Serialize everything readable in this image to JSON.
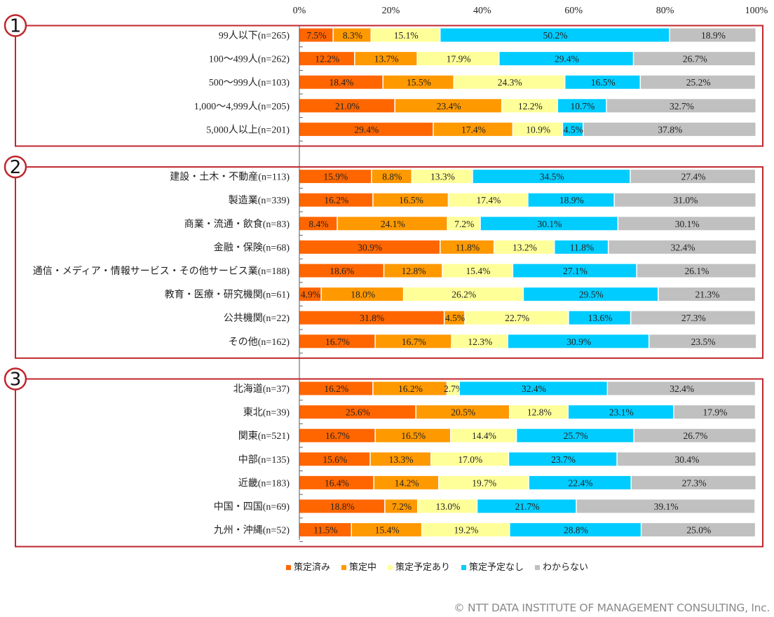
{
  "chart_data": {
    "type": "bar",
    "orientation": "horizontal",
    "stacked": true,
    "percent": true,
    "xlim": [
      0,
      100
    ],
    "x_ticks": [
      "0%",
      "20%",
      "40%",
      "60%",
      "80%",
      "100%"
    ],
    "legend_position": "bottom",
    "series": [
      {
        "name": "策定済み",
        "color": "#FF6600"
      },
      {
        "name": "策定中",
        "color": "#FF9900"
      },
      {
        "name": "策定予定あり",
        "color": "#FFFF99"
      },
      {
        "name": "策定予定なし",
        "color": "#00CCFF"
      },
      {
        "name": "わからない",
        "color": "#C0C0C0"
      }
    ],
    "groups": [
      {
        "number": "1",
        "rows": [
          {
            "label": "99人以下(n=265)",
            "values": [
              7.5,
              8.3,
              15.1,
              50.2,
              18.9
            ]
          },
          {
            "label": "100～499人(n=262)",
            "values": [
              12.2,
              13.7,
              17.9,
              29.4,
              26.7
            ]
          },
          {
            "label": "500～999人(n=103)",
            "values": [
              18.4,
              15.5,
              24.3,
              16.5,
              25.2
            ]
          },
          {
            "label": "1,000～4,999人(n=205)",
            "values": [
              21.0,
              23.4,
              12.2,
              10.7,
              32.7
            ]
          },
          {
            "label": "5,000人以上(n=201)",
            "values": [
              29.4,
              17.4,
              10.9,
              4.5,
              37.8
            ]
          }
        ]
      },
      {
        "number": "2",
        "rows": [
          {
            "label": "建設・土木・不動産(n=113)",
            "values": [
              15.9,
              8.8,
              13.3,
              34.5,
              27.4
            ]
          },
          {
            "label": "製造業(n=339)",
            "values": [
              16.2,
              16.5,
              17.4,
              18.9,
              31.0
            ]
          },
          {
            "label": "商業・流通・飲食(n=83)",
            "values": [
              8.4,
              24.1,
              7.2,
              30.1,
              30.1
            ]
          },
          {
            "label": "金融・保険(n=68)",
            "values": [
              30.9,
              11.8,
              13.2,
              11.8,
              32.4
            ]
          },
          {
            "label": "通信・メディア・情報サービス・その他サービス業(n=188)",
            "values": [
              18.6,
              12.8,
              15.4,
              27.1,
              26.1
            ]
          },
          {
            "label": "教育・医療・研究機関(n=61)",
            "values": [
              4.9,
              18.0,
              26.2,
              29.5,
              21.3
            ]
          },
          {
            "label": "公共機関(n=22)",
            "values": [
              31.8,
              4.5,
              22.7,
              13.6,
              27.3
            ]
          },
          {
            "label": "その他(n=162)",
            "values": [
              16.7,
              16.7,
              12.3,
              30.9,
              23.5
            ]
          }
        ]
      },
      {
        "number": "3",
        "rows": [
          {
            "label": "北海道(n=37)",
            "values": [
              16.2,
              16.2,
              2.7,
              32.4,
              32.4
            ]
          },
          {
            "label": "東北(n=39)",
            "values": [
              25.6,
              20.5,
              12.8,
              23.1,
              17.9
            ]
          },
          {
            "label": "関東(n=521)",
            "values": [
              16.7,
              16.5,
              14.4,
              25.7,
              26.7
            ]
          },
          {
            "label": "中部(n=135)",
            "values": [
              15.6,
              13.3,
              17.0,
              23.7,
              30.4
            ]
          },
          {
            "label": "近畿(n=183)",
            "values": [
              16.4,
              14.2,
              19.7,
              22.4,
              27.3
            ]
          },
          {
            "label": "中国・四国(n=69)",
            "values": [
              18.8,
              7.2,
              13.0,
              21.7,
              39.1
            ]
          },
          {
            "label": "九州・沖縄(n=52)",
            "values": [
              11.5,
              15.4,
              19.2,
              28.8,
              25.0
            ]
          }
        ]
      }
    ],
    "group_box_color": "#C0262D"
  },
  "footer": {
    "copyright": "© NTT DATA INSTITUTE OF MANAGEMENT CONSULTING, Inc."
  }
}
